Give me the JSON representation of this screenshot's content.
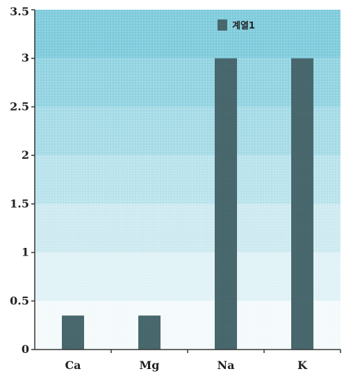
{
  "chart_data": {
    "type": "bar",
    "title": "",
    "xlabel": "",
    "ylabel": "",
    "categories": [
      "Ca",
      "Mg",
      "Na",
      "K"
    ],
    "series": [
      {
        "name": "계열1",
        "values": [
          0.35,
          0.35,
          3.0,
          3.0
        ]
      }
    ],
    "ylim": [
      0,
      3.5
    ],
    "yticks": [
      "0",
      "0.5",
      "1",
      "1.5",
      "2",
      "2.5",
      "3",
      "3.5"
    ],
    "grid": false,
    "legend_position": "top-right",
    "colors": {
      "bar": "#4a6b70",
      "band_top": "#7ecbdc",
      "band_bottom": "#f4fafb",
      "axis": "#333333"
    }
  }
}
